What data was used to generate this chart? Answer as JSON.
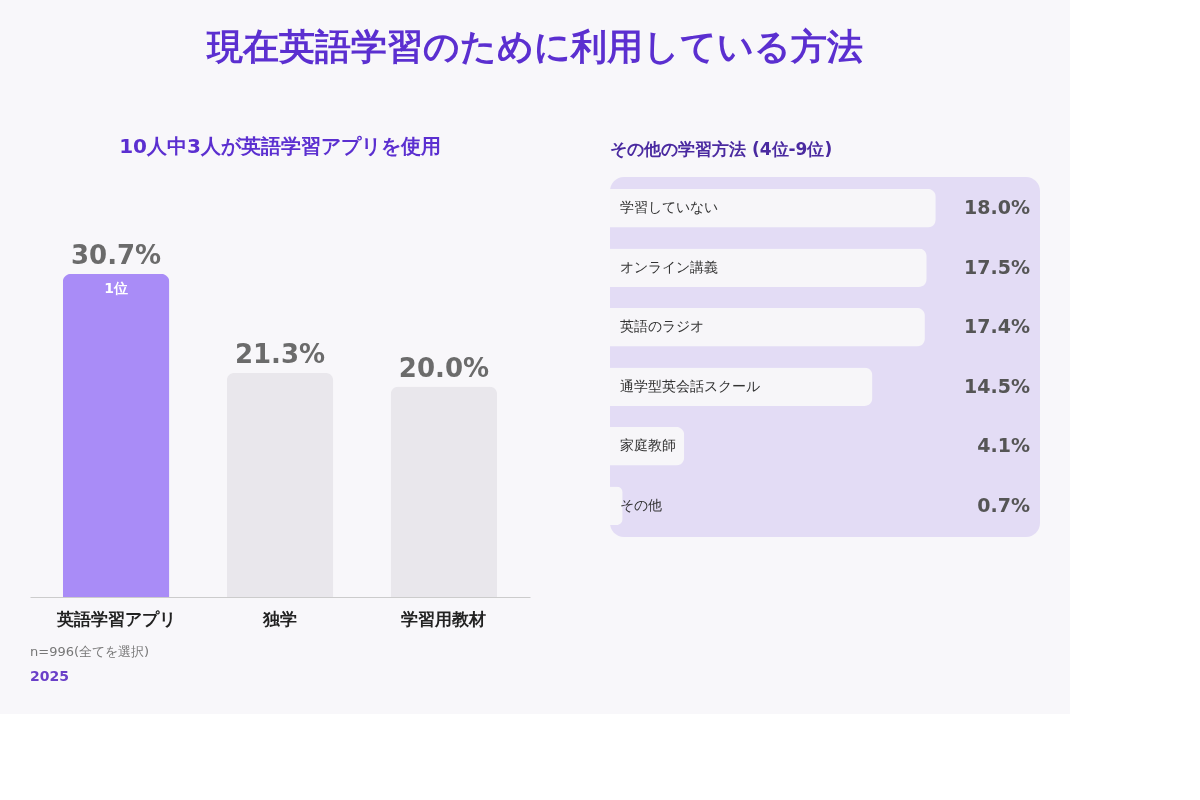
{
  "chart_data": [
    {
      "type": "bar",
      "title": "現在英語学習のために利用している方法",
      "categories": [
        "英語学習アプリ",
        "独学",
        "学習用教材"
      ],
      "values": [
        30.7,
        21.3,
        20.0
      ],
      "colors": [
        "#a98cf7",
        "#e9e7ec",
        "#e9e7ec"
      ],
      "value_labels": [
        "30.7%",
        "21.3%",
        "20.0%"
      ],
      "annotations": [
        "10人中3人が英語学習アプリを使用",
        {
          "text": "1位",
          "x": "英語学習アプリ",
          "y": 30.7
        },
        "n=996(全てを選択)",
        "2025"
      ]
    },
    {
      "type": "bar",
      "orientation": "horizontal",
      "title": "その他の学習方法 (4位-9位)",
      "categories": [
        "学習していない",
        "オンライン講義",
        "英語のラジオ",
        "通学型英会話スクール",
        "家庭教師",
        "その他"
      ],
      "values": [
        18.0,
        17.5,
        17.4,
        14.5,
        4.1,
        0.7
      ],
      "colors": [
        "#f7f6f9",
        "#f7f6f9",
        "#f7f6f9",
        "#f7f6f9",
        "#f7f6f9",
        "#f7f6f9"
      ],
      "value_labels": [
        "18.0%",
        "17.5%",
        "17.4%",
        "14.5%",
        "4.1%",
        "0.7%"
      ]
    }
  ]
}
